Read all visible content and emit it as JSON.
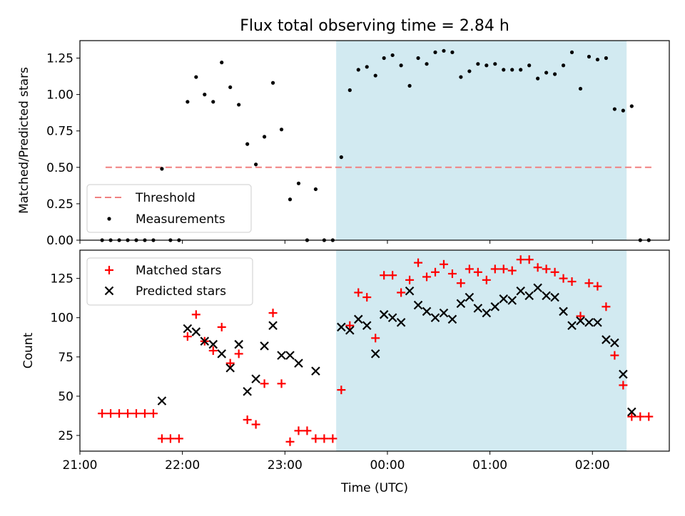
{
  "title": "Flux total observing time = 2.84 h",
  "colors": {
    "threshold": "#f08080",
    "measurement": "#000000",
    "matched": "#ff0000",
    "predicted": "#000000",
    "shade": "#add8e6"
  },
  "chart_data": [
    {
      "type": "scatter",
      "panel": "top",
      "ylabel": "Matched/Predicted stars",
      "ylim": [
        0,
        1.37
      ],
      "xlim": [
        "21:00",
        "02:45"
      ],
      "yticks": [
        "0.00",
        "0.25",
        "0.50",
        "0.75",
        "1.00",
        "1.25"
      ],
      "grid": false,
      "legend_position": "lower-left",
      "shaded_interval": [
        "23:30",
        "02:20"
      ],
      "threshold": {
        "name": "Threshold",
        "value": 0.5,
        "x_range": [
          "21:15",
          "02:35"
        ]
      },
      "series": [
        {
          "name": "Measurements",
          "points": [
            [
              "21:13",
              0
            ],
            [
              "21:18",
              0
            ],
            [
              "21:23",
              0
            ],
            [
              "21:28",
              0
            ],
            [
              "21:33",
              0
            ],
            [
              "21:38",
              0
            ],
            [
              "21:43",
              0
            ],
            [
              "21:48",
              0.49
            ],
            [
              "21:53",
              0
            ],
            [
              "21:58",
              0
            ],
            [
              "22:03",
              0.95
            ],
            [
              "22:08",
              1.12
            ],
            [
              "22:13",
              1.0
            ],
            [
              "22:18",
              0.95
            ],
            [
              "22:23",
              1.22
            ],
            [
              "22:28",
              1.05
            ],
            [
              "22:33",
              0.93
            ],
            [
              "22:38",
              0.66
            ],
            [
              "22:43",
              0.52
            ],
            [
              "22:48",
              0.71
            ],
            [
              "22:53",
              1.08
            ],
            [
              "22:58",
              0.76
            ],
            [
              "23:03",
              0.28
            ],
            [
              "23:08",
              0.39
            ],
            [
              "23:13",
              0
            ],
            [
              "23:18",
              0.35
            ],
            [
              "23:23",
              0
            ],
            [
              "23:28",
              0
            ],
            [
              "23:33",
              0.57
            ],
            [
              "23:38",
              1.03
            ],
            [
              "23:43",
              1.17
            ],
            [
              "23:48",
              1.19
            ],
            [
              "23:53",
              1.13
            ],
            [
              "23:58",
              1.25
            ],
            [
              "00:03",
              1.27
            ],
            [
              "00:08",
              1.2
            ],
            [
              "00:13",
              1.06
            ],
            [
              "00:18",
              1.25
            ],
            [
              "00:23",
              1.21
            ],
            [
              "00:28",
              1.29
            ],
            [
              "00:33",
              1.3
            ],
            [
              "00:38",
              1.29
            ],
            [
              "00:43",
              1.12
            ],
            [
              "00:48",
              1.16
            ],
            [
              "00:53",
              1.21
            ],
            [
              "00:58",
              1.2
            ],
            [
              "01:03",
              1.21
            ],
            [
              "01:08",
              1.17
            ],
            [
              "01:13",
              1.17
            ],
            [
              "01:18",
              1.17
            ],
            [
              "01:23",
              1.2
            ],
            [
              "01:28",
              1.11
            ],
            [
              "01:33",
              1.15
            ],
            [
              "01:38",
              1.14
            ],
            [
              "01:43",
              1.2
            ],
            [
              "01:48",
              1.29
            ],
            [
              "01:53",
              1.04
            ],
            [
              "01:58",
              1.26
            ],
            [
              "02:03",
              1.24
            ],
            [
              "02:08",
              1.25
            ],
            [
              "02:13",
              0.9
            ],
            [
              "02:18",
              0.89
            ],
            [
              "02:23",
              0.92
            ],
            [
              "02:28",
              0
            ],
            [
              "02:33",
              0
            ]
          ]
        }
      ]
    },
    {
      "type": "scatter",
      "panel": "bottom",
      "xlabel": "Time (UTC)",
      "ylabel": "Count",
      "ylim": [
        15,
        143
      ],
      "xlim": [
        "21:00",
        "02:45"
      ],
      "xticks": [
        "21:00",
        "22:00",
        "23:00",
        "00:00",
        "01:00",
        "02:00"
      ],
      "yticks": [
        "25",
        "50",
        "75",
        "100",
        "125"
      ],
      "grid": false,
      "legend_position": "upper-left",
      "shaded_interval": [
        "23:30",
        "02:20"
      ],
      "series": [
        {
          "name": "Matched stars",
          "marker": "plus",
          "points": [
            [
              "21:13",
              39
            ],
            [
              "21:18",
              39
            ],
            [
              "21:23",
              39
            ],
            [
              "21:28",
              39
            ],
            [
              "21:33",
              39
            ],
            [
              "21:38",
              39
            ],
            [
              "21:43",
              39
            ],
            [
              "21:48",
              23
            ],
            [
              "21:53",
              23
            ],
            [
              "21:58",
              23
            ],
            [
              "22:03",
              88
            ],
            [
              "22:08",
              102
            ],
            [
              "22:13",
              85
            ],
            [
              "22:18",
              79
            ],
            [
              "22:23",
              94
            ],
            [
              "22:28",
              71
            ],
            [
              "22:33",
              77
            ],
            [
              "22:38",
              35
            ],
            [
              "22:43",
              32
            ],
            [
              "22:48",
              58
            ],
            [
              "22:53",
              103
            ],
            [
              "22:58",
              58
            ],
            [
              "23:03",
              21
            ],
            [
              "23:08",
              28
            ],
            [
              "23:13",
              28
            ],
            [
              "23:18",
              23
            ],
            [
              "23:23",
              23
            ],
            [
              "23:28",
              23
            ],
            [
              "23:33",
              54
            ],
            [
              "23:38",
              95
            ],
            [
              "23:43",
              116
            ],
            [
              "23:48",
              113
            ],
            [
              "23:53",
              87
            ],
            [
              "23:58",
              127
            ],
            [
              "00:03",
              127
            ],
            [
              "00:08",
              116
            ],
            [
              "00:13",
              124
            ],
            [
              "00:18",
              135
            ],
            [
              "00:23",
              126
            ],
            [
              "00:28",
              129
            ],
            [
              "00:33",
              134
            ],
            [
              "00:38",
              128
            ],
            [
              "00:43",
              122
            ],
            [
              "00:48",
              131
            ],
            [
              "00:53",
              129
            ],
            [
              "00:58",
              124
            ],
            [
              "01:03",
              131
            ],
            [
              "01:08",
              131
            ],
            [
              "01:13",
              130
            ],
            [
              "01:18",
              137
            ],
            [
              "01:23",
              137
            ],
            [
              "01:28",
              132
            ],
            [
              "01:33",
              131
            ],
            [
              "01:38",
              129
            ],
            [
              "01:43",
              125
            ],
            [
              "01:48",
              123
            ],
            [
              "01:53",
              101
            ],
            [
              "01:58",
              122
            ],
            [
              "02:03",
              120
            ],
            [
              "02:08",
              107
            ],
            [
              "02:13",
              76
            ],
            [
              "02:18",
              57
            ],
            [
              "02:23",
              37
            ],
            [
              "02:28",
              37
            ],
            [
              "02:33",
              37
            ]
          ]
        },
        {
          "name": "Predicted stars",
          "marker": "x",
          "points": [
            [
              "21:48",
              47
            ],
            [
              "22:03",
              93
            ],
            [
              "22:08",
              91
            ],
            [
              "22:13",
              85
            ],
            [
              "22:18",
              83
            ],
            [
              "22:23",
              77
            ],
            [
              "22:28",
              68
            ],
            [
              "22:33",
              83
            ],
            [
              "22:38",
              53
            ],
            [
              "22:43",
              61
            ],
            [
              "22:48",
              82
            ],
            [
              "22:53",
              95
            ],
            [
              "22:58",
              76
            ],
            [
              "23:03",
              76
            ],
            [
              "23:08",
              71
            ],
            [
              "23:18",
              66
            ],
            [
              "23:33",
              94
            ],
            [
              "23:38",
              92
            ],
            [
              "23:43",
              99
            ],
            [
              "23:48",
              95
            ],
            [
              "23:53",
              77
            ],
            [
              "23:58",
              102
            ],
            [
              "00:03",
              100
            ],
            [
              "00:08",
              97
            ],
            [
              "00:13",
              117
            ],
            [
              "00:18",
              108
            ],
            [
              "00:23",
              104
            ],
            [
              "00:28",
              100
            ],
            [
              "00:33",
              103
            ],
            [
              "00:38",
              99
            ],
            [
              "00:43",
              109
            ],
            [
              "00:48",
              113
            ],
            [
              "00:53",
              106
            ],
            [
              "00:58",
              103
            ],
            [
              "01:03",
              107
            ],
            [
              "01:08",
              112
            ],
            [
              "01:13",
              111
            ],
            [
              "01:18",
              117
            ],
            [
              "01:23",
              114
            ],
            [
              "01:28",
              119
            ],
            [
              "01:33",
              114
            ],
            [
              "01:38",
              113
            ],
            [
              "01:43",
              104
            ],
            [
              "01:48",
              95
            ],
            [
              "01:53",
              98
            ],
            [
              "01:58",
              97
            ],
            [
              "02:03",
              97
            ],
            [
              "02:08",
              86
            ],
            [
              "02:13",
              84
            ],
            [
              "02:18",
              64
            ],
            [
              "02:23",
              40
            ]
          ]
        }
      ]
    }
  ]
}
